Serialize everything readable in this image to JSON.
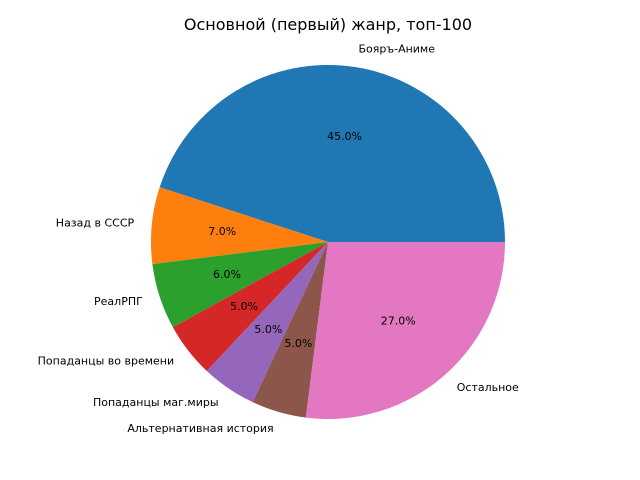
{
  "chart_data": {
    "type": "pie",
    "title": "Основной (первый) жанр, топ-100",
    "start_angle_deg": 0,
    "direction": "counterclockwise",
    "slices": [
      {
        "label": "Бояръ-Аниме",
        "value": 45.0,
        "pct_label": "45.0%",
        "color": "#1f77b4"
      },
      {
        "label": "Назад в СССР",
        "value": 7.0,
        "pct_label": "7.0%",
        "color": "#ff7f0e"
      },
      {
        "label": "РеалРПГ",
        "value": 6.0,
        "pct_label": "6.0%",
        "color": "#2ca02c"
      },
      {
        "label": "Попаданцы во времени",
        "value": 5.0,
        "pct_label": "5.0%",
        "color": "#d62728"
      },
      {
        "label": "Попаданцы маг.миры",
        "value": 5.0,
        "pct_label": "5.0%",
        "color": "#9467bd"
      },
      {
        "label": "Альтернативная история",
        "value": 5.0,
        "pct_label": "5.0%",
        "color": "#8c564b"
      },
      {
        "label": "Остальное",
        "value": 27.0,
        "pct_label": "27.0%",
        "color": "#e377c2"
      }
    ]
  }
}
